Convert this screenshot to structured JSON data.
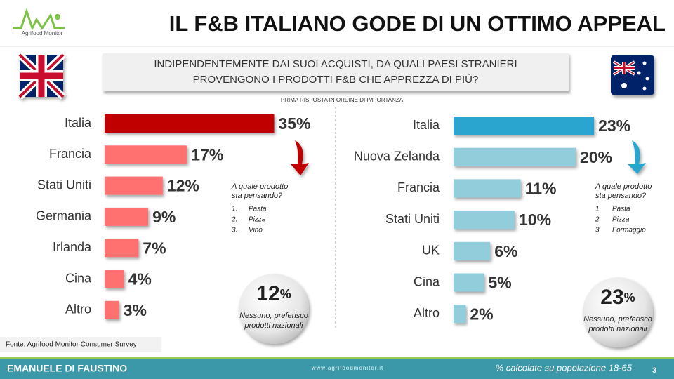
{
  "slide": {
    "title": "IL F&B ITALIANO GODE DI UN OTTIMO APPEAL",
    "logo": "Agrifood Monitor",
    "question": [
      "INDIPENDENTEMENTE DAI SUOI ACQUISTI, DA QUALI PAESI STRANIERI",
      "PROVENGONO I PRODOTTI F&B CHE APPREZZA DI PIÙ?"
    ],
    "subtitle": "PRIMA RISPOSTA IN ORDINE DI IMPORTANZA",
    "source": "Fonte: Agrifood  Monitor Consumer Survey",
    "author": "EMANUELE DI FAUSTINO",
    "website": "www.agrifoodmonitor.it",
    "note": "% calcolate su popolazione 18-65",
    "page": 3
  },
  "chart_data": [
    {
      "type": "bar",
      "orientation": "horizontal",
      "categories": [
        "Italia",
        "Francia",
        "Stati Uniti",
        "Germania",
        "Irlanda",
        "Cina",
        "Altro"
      ],
      "values": [
        35,
        17,
        12,
        9,
        7,
        4,
        3
      ],
      "value_labels": [
        "35%",
        "17%",
        "12%",
        "9%",
        "7%",
        "4%",
        "3%"
      ],
      "colors": [
        "#c00000",
        "#ff7070",
        "#ff7070",
        "#ff7070",
        "#ff7070",
        "#ff7070",
        "#ff7070"
      ],
      "annotation": {
        "title": [
          "A quale prodotto",
          "sta pensando?"
        ],
        "items": [
          {
            "number": "1.",
            "text": "Pasta"
          },
          {
            "number": "2.",
            "text": "Pizza"
          },
          {
            "number": "3.",
            "text": "Vino"
          }
        ]
      },
      "bubble": {
        "value": 12,
        "unit": "%",
        "text": [
          "Nessuno, preferisco",
          "prodotti nazionali"
        ]
      }
    },
    {
      "type": "bar",
      "orientation": "horizontal",
      "categories": [
        "Italia",
        "Nuova Zelanda",
        "Francia",
        "Stati Uniti",
        "UK",
        "Cina",
        "Altro"
      ],
      "values": [
        23,
        20,
        11,
        10,
        6,
        5,
        2
      ],
      "value_labels": [
        "23%",
        "20%",
        "11%",
        "10%",
        "6%",
        "5%",
        "2%"
      ],
      "colors": [
        "#2aa5d0",
        "#92cddc",
        "#92cddc",
        "#92cddc",
        "#92cddc",
        "#92cddc",
        "#92cddc"
      ],
      "annotation": {
        "title": [
          "A quale prodotto",
          "sta pensando?"
        ],
        "items": [
          {
            "number": "1.",
            "text": "Pasta"
          },
          {
            "number": "2.",
            "text": "Pizza"
          },
          {
            "number": "3.",
            "text": "Formaggio"
          }
        ]
      },
      "bubble": {
        "value": 23,
        "unit": "%",
        "text": [
          "Nessuno, preferisco",
          "prodotti nazionali"
        ]
      }
    }
  ]
}
